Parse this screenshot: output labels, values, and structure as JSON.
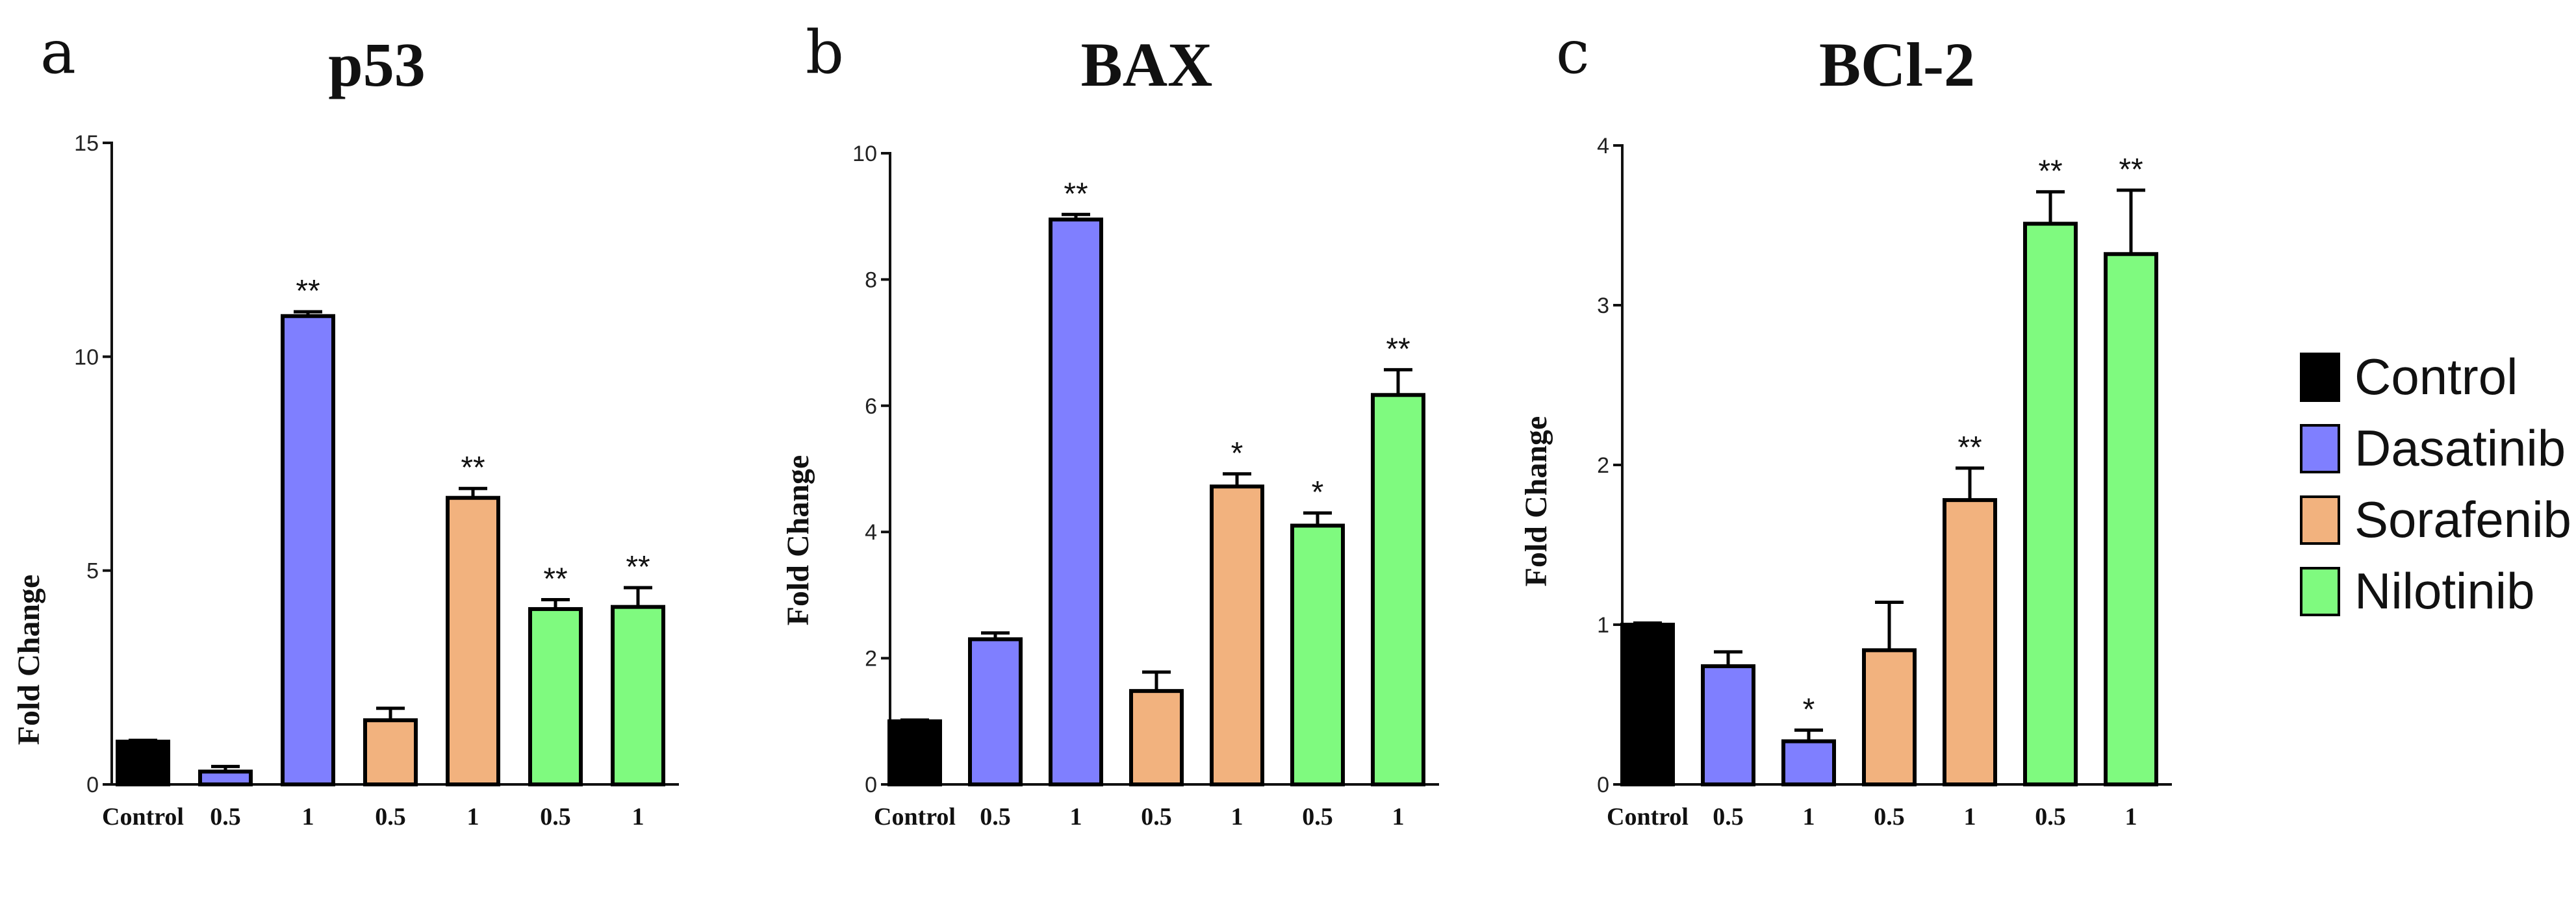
{
  "colors": {
    "Control": "#000000",
    "Dasatinib": "#7f7fff",
    "Sorafenib": "#f2b27e",
    "Nilotinib": "#7ffa7f"
  },
  "legend": {
    "items": [
      {
        "label": "Control",
        "color_key": "Control"
      },
      {
        "label": "Dasatinib",
        "color_key": "Dasatinib"
      },
      {
        "label": "Sorafenib",
        "color_key": "Sorafenib"
      },
      {
        "label": "Nilotinib",
        "color_key": "Nilotinib"
      }
    ]
  },
  "chart_data": [
    {
      "type": "bar",
      "panel": "a",
      "title": "p53",
      "xlabel": "",
      "ylabel": "Fold Change",
      "ylim": [
        0,
        15
      ],
      "yticks": [
        0,
        5,
        10,
        15
      ],
      "categories": [
        "Control",
        "0.5",
        "1",
        "0.5",
        "1",
        "0.5",
        "1"
      ],
      "groups": [
        "Control",
        "Dasatinib",
        "Dasatinib",
        "Sorafenib",
        "Sorafenib",
        "Nilotinib",
        "Nilotinib"
      ],
      "values": [
        1.0,
        0.3,
        10.95,
        1.5,
        6.7,
        4.1,
        4.15
      ],
      "errors": [
        0.03,
        0.12,
        0.1,
        0.28,
        0.22,
        0.22,
        0.45
      ],
      "significance": [
        "",
        "",
        "**",
        "",
        "**",
        "**",
        "**"
      ]
    },
    {
      "type": "bar",
      "panel": "b",
      "title": "BAX",
      "xlabel": "",
      "ylabel": "Fold Change",
      "ylim": [
        0,
        10
      ],
      "yticks": [
        0,
        2,
        4,
        6,
        8,
        10
      ],
      "categories": [
        "Control",
        "0.5",
        "1",
        "0.5",
        "1",
        "0.5",
        "1"
      ],
      "groups": [
        "Control",
        "Dasatinib",
        "Dasatinib",
        "Sorafenib",
        "Sorafenib",
        "Nilotinib",
        "Nilotinib"
      ],
      "values": [
        1.0,
        2.3,
        8.95,
        1.48,
        4.72,
        4.1,
        6.17
      ],
      "errors": [
        0.02,
        0.1,
        0.08,
        0.3,
        0.2,
        0.2,
        0.4
      ],
      "significance": [
        "",
        "",
        "**",
        "",
        "*",
        "*",
        "**"
      ]
    },
    {
      "type": "bar",
      "panel": "c",
      "title": "BCl-2",
      "xlabel": "",
      "ylabel": "Fold Change",
      "ylim": [
        0,
        4
      ],
      "yticks": [
        0,
        1,
        2,
        3,
        4
      ],
      "categories": [
        "Control",
        "0.5",
        "1",
        "0.5",
        "1",
        "0.5",
        "1"
      ],
      "groups": [
        "Control",
        "Dasatinib",
        "Dasatinib",
        "Sorafenib",
        "Sorafenib",
        "Nilotinib",
        "Nilotinib"
      ],
      "values": [
        1.0,
        0.74,
        0.27,
        0.84,
        1.78,
        3.51,
        3.32
      ],
      "errors": [
        0.01,
        0.09,
        0.07,
        0.3,
        0.2,
        0.2,
        0.4
      ],
      "significance": [
        "",
        "",
        "*",
        "",
        "**",
        "**",
        "**"
      ]
    }
  ]
}
